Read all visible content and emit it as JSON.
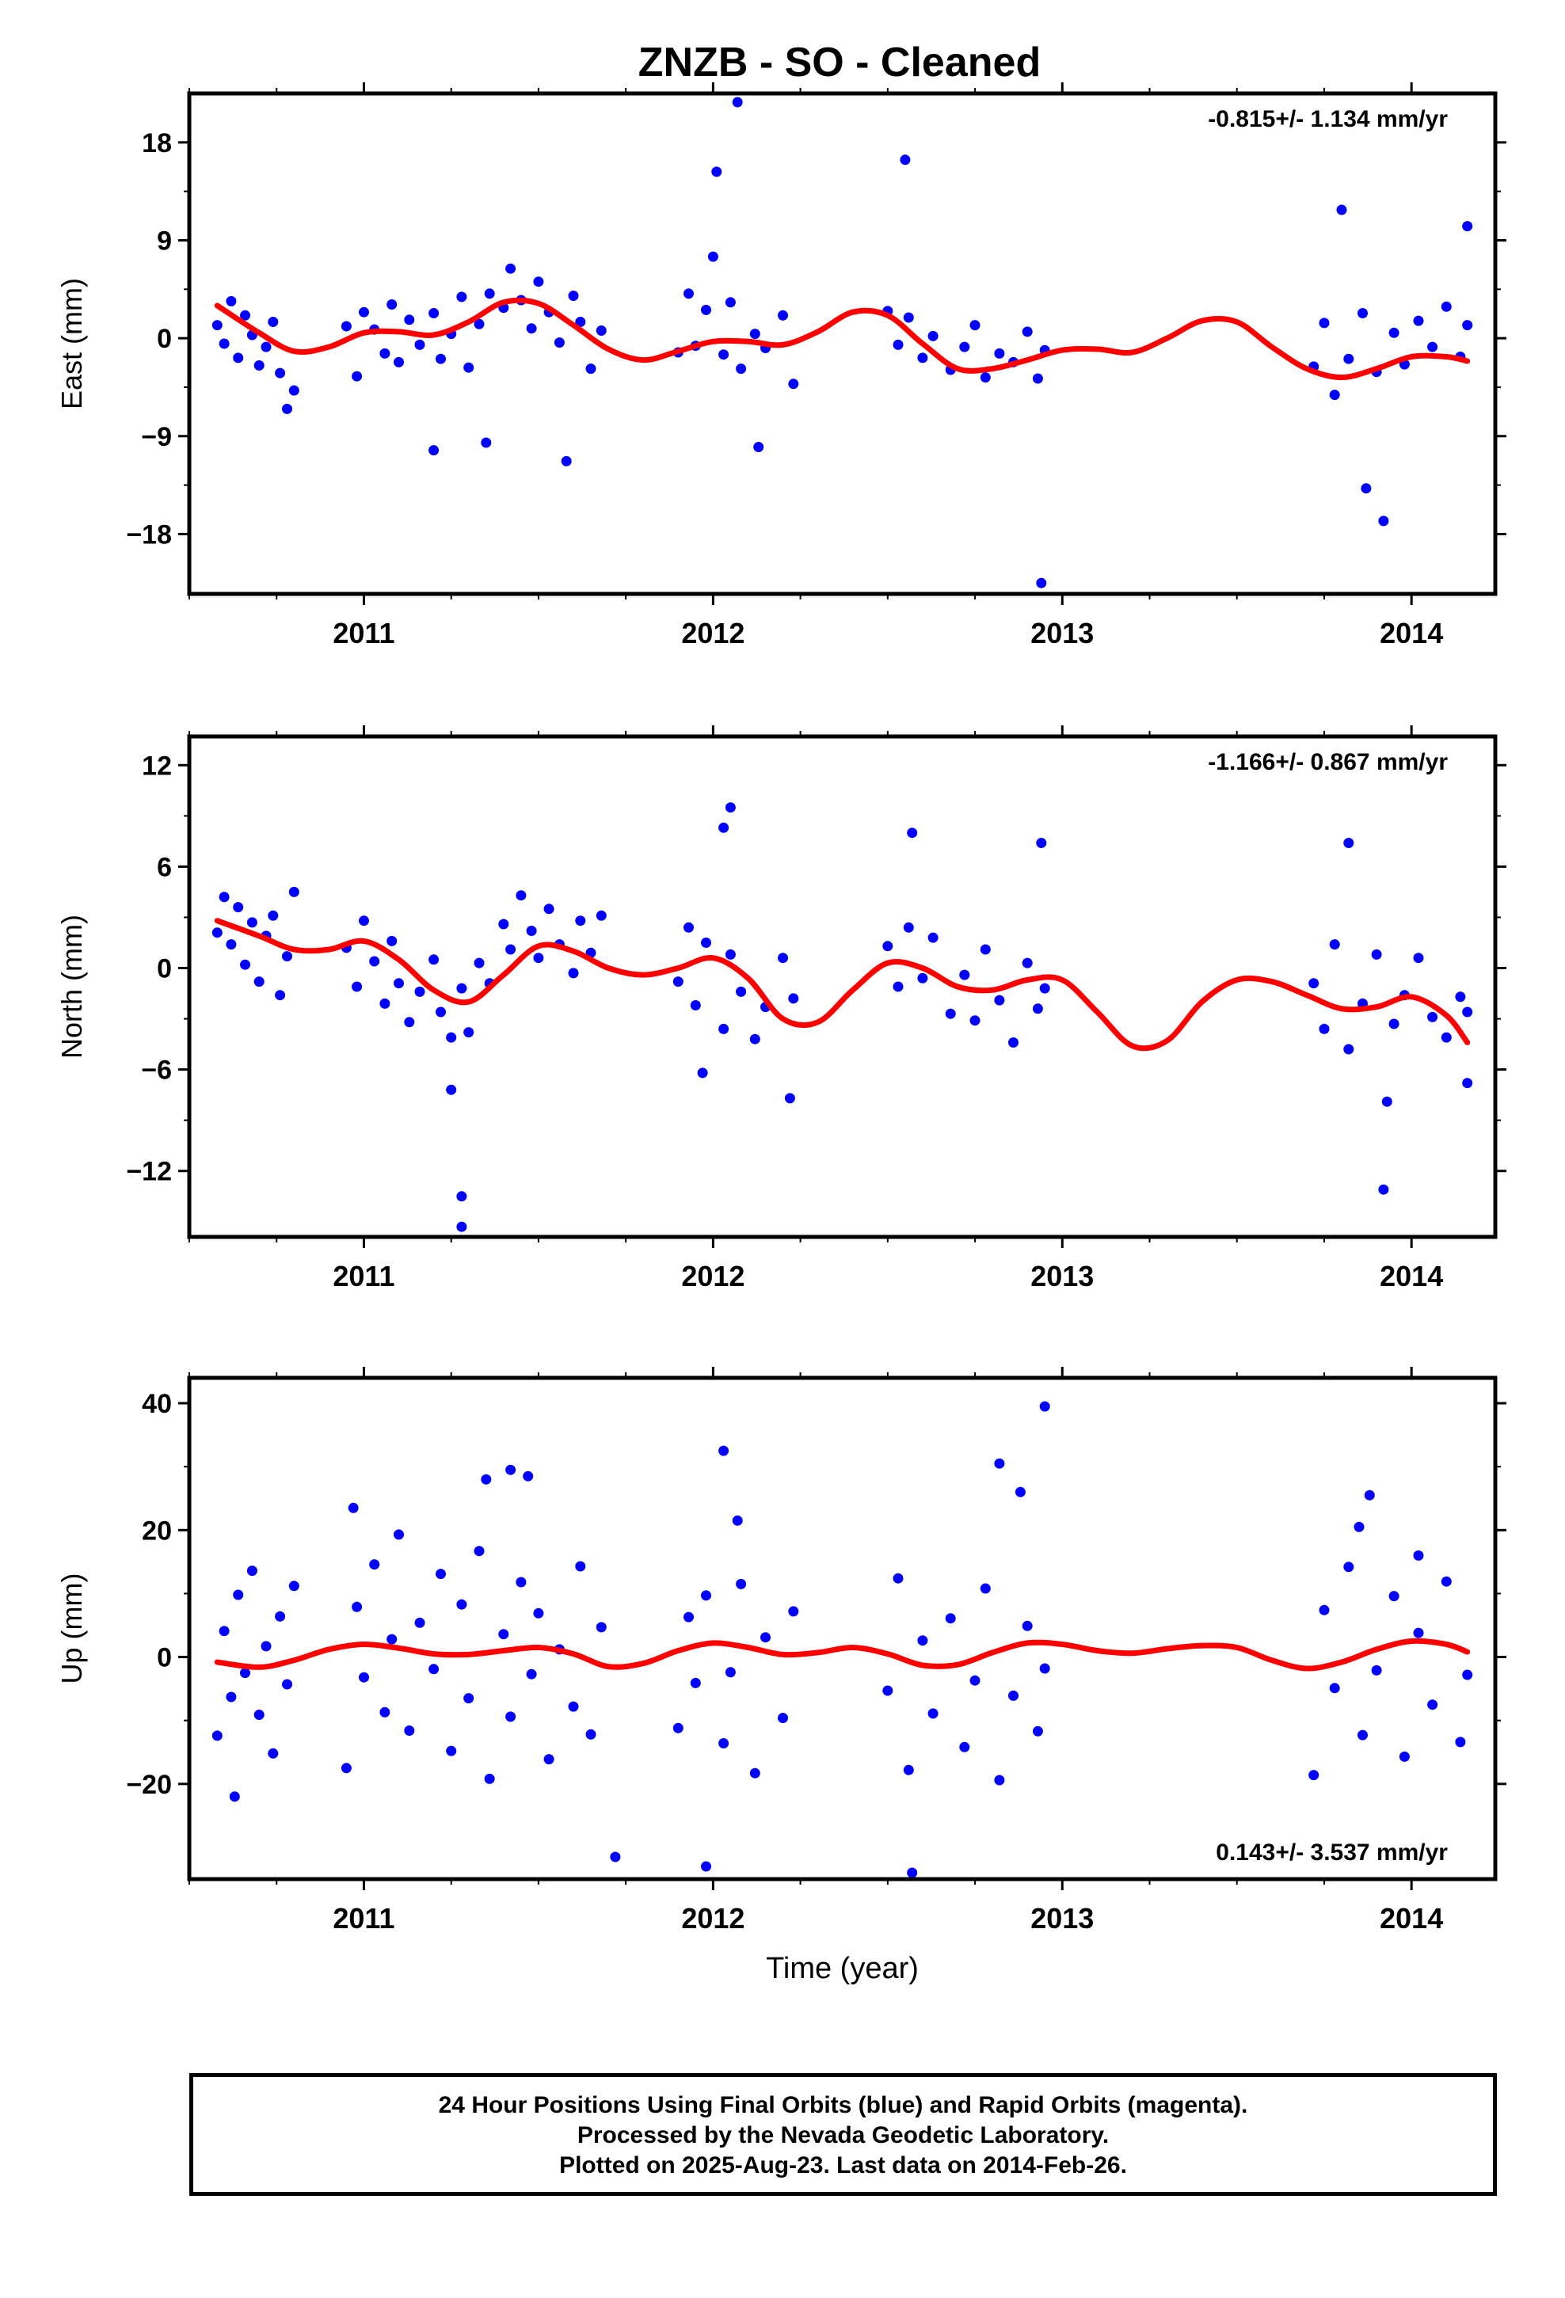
{
  "title": "ZNZB  - SO - Cleaned",
  "colors": {
    "points": "#0000ff",
    "fit": "#ff0000",
    "frame": "#000000"
  },
  "footer": {
    "line1": "24 Hour Positions Using Final Orbits (blue) and Rapid Orbits (magenta).",
    "line2": "Processed by the Nevada Geodetic Laboratory.",
    "line3": "Plotted on 2025-Aug-23. Last data on 2014-Feb-26."
  },
  "chart_data": [
    {
      "type": "scatter",
      "ylabel": "East (mm)",
      "xlabel": "",
      "rate_label": "-0.815+/- 1.134 mm/yr",
      "rate_position": "top-right",
      "xlim": [
        2010.5,
        2014.24
      ],
      "ylim": [
        -23.5,
        22.5
      ],
      "xticks": [
        2011,
        2012,
        2013,
        2014
      ],
      "yticks": [
        18,
        9,
        0,
        -9,
        -18
      ],
      "ytick_labels": [
        "18",
        "9",
        "0",
        "−9",
        "−18"
      ],
      "point_color": "#0000ff",
      "fit_color": "#ff0000",
      "series": [
        {
          "x": [
            2010.58,
            2010.6,
            2010.62,
            2010.64,
            2010.66,
            2010.68,
            2010.7,
            2010.72,
            2010.74,
            2010.76,
            2010.78,
            2010.8,
            2010.95,
            2010.98,
            2011.0,
            2011.03,
            2011.06,
            2011.08,
            2011.1,
            2011.13,
            2011.16,
            2011.2,
            2011.22,
            2011.25,
            2011.28,
            2011.3,
            2011.33,
            2011.36,
            2011.4,
            2011.42,
            2011.45,
            2011.48,
            2011.5,
            2011.53,
            2011.56,
            2011.6,
            2011.62,
            2011.65,
            2011.68,
            2011.9,
            2011.93,
            2011.95,
            2011.98,
            2012.03,
            2012.05,
            2012.08,
            2012.12,
            2012.15,
            2012.2,
            2012.23,
            2012.5,
            2012.53,
            2012.56,
            2012.6,
            2012.63,
            2012.68,
            2012.72,
            2012.75,
            2012.78,
            2012.82,
            2012.86,
            2012.9,
            2012.93,
            2012.95,
            2013.72,
            2013.75,
            2013.78,
            2013.82,
            2013.86,
            2013.9,
            2013.95,
            2013.98,
            2014.02,
            2014.06,
            2014.1,
            2014.14,
            2014.16,
            2011.2,
            2011.35,
            2011.58,
            2012.01,
            2012.13,
            2012.55,
            2012.94,
            2013.8,
            2013.87,
            2013.92,
            2014.16,
            2012.07,
            2012.0
          ],
          "y": [
            1.2,
            -0.5,
            3.4,
            -1.8,
            2.1,
            0.3,
            -2.5,
            -0.8,
            1.5,
            -3.2,
            -6.5,
            -4.8,
            1.1,
            -3.5,
            2.4,
            0.8,
            -1.4,
            3.1,
            -2.2,
            1.7,
            -0.6,
            2.3,
            -1.9,
            0.4,
            3.8,
            -2.7,
            1.3,
            4.1,
            2.8,
            6.4,
            3.5,
            0.9,
            5.2,
            2.4,
            -0.4,
            3.9,
            1.5,
            -2.8,
            0.7,
            -1.3,
            4.1,
            -0.7,
            2.6,
            -1.5,
            3.3,
            -2.8,
            0.4,
            -0.9,
            2.1,
            -4.2,
            2.5,
            -0.6,
            1.9,
            -1.8,
            0.2,
            -2.9,
            -0.8,
            1.2,
            -3.6,
            -1.4,
            -2.2,
            0.6,
            -3.7,
            -1.1,
            -2.6,
            1.4,
            -5.2,
            -1.9,
            2.3,
            -3.1,
            0.5,
            -2.4,
            1.6,
            -0.8,
            2.9,
            -1.7,
            1.2,
            -10.3,
            -9.6,
            -11.3,
            15.3,
            -10.0,
            16.4,
            -22.5,
            11.8,
            -13.8,
            -16.8,
            10.3,
            21.7,
            7.5
          ]
        }
      ],
      "fit": {
        "x": [
          2010.58,
          2010.7,
          2010.8,
          2010.9,
          2011.0,
          2011.1,
          2011.2,
          2011.3,
          2011.4,
          2011.5,
          2011.6,
          2011.7,
          2011.8,
          2011.9,
          2012.0,
          2012.1,
          2012.2,
          2012.3,
          2012.4,
          2012.5,
          2012.6,
          2012.7,
          2012.8,
          2012.9,
          2013.0,
          2013.1,
          2013.2,
          2013.3,
          2013.4,
          2013.5,
          2013.6,
          2013.7,
          2013.8,
          2013.9,
          2014.0,
          2014.1,
          2014.16
        ],
        "y": [
          3.0,
          0.5,
          -1.2,
          -0.8,
          0.5,
          0.6,
          0.3,
          1.5,
          3.3,
          3.2,
          1.2,
          -1.0,
          -2.0,
          -1.2,
          -0.3,
          -0.3,
          -0.6,
          0.6,
          2.4,
          2.1,
          -0.5,
          -2.8,
          -2.8,
          -2.0,
          -1.1,
          -1.0,
          -1.3,
          0.0,
          1.6,
          1.5,
          -0.8,
          -2.8,
          -3.6,
          -2.8,
          -1.7,
          -1.7,
          -2.1
        ]
      }
    },
    {
      "type": "scatter",
      "ylabel": "North (mm)",
      "xlabel": "",
      "rate_label": "-1.166+/- 0.867 mm/yr",
      "rate_position": "top-right",
      "xlim": [
        2010.5,
        2014.24
      ],
      "ylim": [
        -15.9,
        13.7
      ],
      "xticks": [
        2011,
        2012,
        2013,
        2014
      ],
      "yticks": [
        12,
        6,
        0,
        -6,
        -12
      ],
      "ytick_labels": [
        "12",
        "6",
        "0",
        "−6",
        "−12"
      ],
      "point_color": "#0000ff",
      "fit_color": "#ff0000",
      "series": [
        {
          "x": [
            2010.58,
            2010.6,
            2010.62,
            2010.64,
            2010.66,
            2010.68,
            2010.7,
            2010.72,
            2010.74,
            2010.76,
            2010.78,
            2010.8,
            2010.95,
            2010.98,
            2011.0,
            2011.03,
            2011.06,
            2011.08,
            2011.1,
            2011.13,
            2011.16,
            2011.2,
            2011.22,
            2011.25,
            2011.28,
            2011.3,
            2011.33,
            2011.36,
            2011.4,
            2011.42,
            2011.45,
            2011.48,
            2011.5,
            2011.53,
            2011.56,
            2011.6,
            2011.62,
            2011.65,
            2011.68,
            2011.9,
            2011.93,
            2011.95,
            2011.98,
            2012.03,
            2012.05,
            2012.08,
            2012.12,
            2012.15,
            2012.2,
            2012.23,
            2012.5,
            2012.53,
            2012.56,
            2012.6,
            2012.63,
            2012.68,
            2012.72,
            2012.75,
            2012.78,
            2012.82,
            2012.86,
            2012.9,
            2012.93,
            2012.95,
            2013.72,
            2013.75,
            2013.78,
            2013.82,
            2013.86,
            2013.9,
            2013.95,
            2013.98,
            2014.02,
            2014.06,
            2014.1,
            2014.14,
            2014.16,
            2011.28,
            2011.28,
            2011.97,
            2012.05,
            2012.03,
            2012.22,
            2012.57,
            2012.94,
            2013.82,
            2013.93,
            2013.92,
            2014.16,
            2011.25
          ],
          "y": [
            2.1,
            4.2,
            1.4,
            3.6,
            0.2,
            2.7,
            -0.8,
            1.9,
            3.1,
            -1.6,
            0.7,
            4.5,
            1.2,
            -1.1,
            2.8,
            0.4,
            -2.1,
            1.6,
            -0.9,
            -3.2,
            -1.4,
            0.5,
            -2.6,
            -4.1,
            -1.2,
            -3.8,
            0.3,
            -0.9,
            2.6,
            1.1,
            4.3,
            2.2,
            0.6,
            3.5,
            1.4,
            -0.3,
            2.8,
            0.9,
            3.1,
            -0.8,
            2.4,
            -2.2,
            1.5,
            -3.6,
            0.8,
            -1.4,
            -4.2,
            -2.3,
            0.6,
            -1.8,
            1.3,
            -1.1,
            2.4,
            -0.6,
            1.8,
            -2.7,
            -0.4,
            -3.1,
            1.1,
            -1.9,
            -4.4,
            0.3,
            -2.4,
            -1.2,
            -0.9,
            -3.6,
            1.4,
            -4.8,
            -2.1,
            0.8,
            -3.3,
            -1.6,
            0.6,
            -2.9,
            -4.1,
            -1.7,
            -2.6,
            -13.5,
            -15.3,
            -6.2,
            9.5,
            8.3,
            -7.7,
            8.0,
            7.4,
            7.4,
            -7.9,
            -13.1,
            -6.8,
            -7.2
          ]
        }
      ],
      "fit": {
        "x": [
          2010.58,
          2010.7,
          2010.8,
          2010.9,
          2011.0,
          2011.1,
          2011.2,
          2011.3,
          2011.4,
          2011.5,
          2011.6,
          2011.7,
          2011.8,
          2011.9,
          2012.0,
          2012.1,
          2012.2,
          2012.3,
          2012.4,
          2012.5,
          2012.6,
          2012.7,
          2012.8,
          2012.9,
          2013.0,
          2013.1,
          2013.2,
          2013.3,
          2013.4,
          2013.5,
          2013.6,
          2013.7,
          2013.8,
          2013.9,
          2014.0,
          2014.1,
          2014.16
        ],
        "y": [
          2.8,
          1.9,
          1.1,
          1.1,
          1.6,
          0.5,
          -1.3,
          -2.0,
          -0.4,
          1.3,
          1.0,
          0.0,
          -0.4,
          0.0,
          0.6,
          -0.6,
          -3.0,
          -3.2,
          -1.3,
          0.3,
          0.0,
          -1.1,
          -1.3,
          -0.7,
          -0.7,
          -2.6,
          -4.6,
          -4.3,
          -2.0,
          -0.7,
          -0.8,
          -1.6,
          -2.4,
          -2.3,
          -1.7,
          -2.8,
          -4.4
        ]
      }
    },
    {
      "type": "scatter",
      "ylabel": "Up (mm)",
      "xlabel": "Time (year)",
      "rate_label": "0.143+/- 3.537 mm/yr",
      "rate_position": "bottom-right",
      "xlim": [
        2010.5,
        2014.24
      ],
      "ylim": [
        -35,
        44
      ],
      "xticks": [
        2011,
        2012,
        2013,
        2014
      ],
      "yticks": [
        40,
        20,
        0,
        -20
      ],
      "ytick_labels": [
        "40",
        "20",
        "0",
        "−20"
      ],
      "point_color": "#0000ff",
      "fit_color": "#ff0000",
      "series": [
        {
          "x": [
            2010.58,
            2010.6,
            2010.62,
            2010.64,
            2010.66,
            2010.68,
            2010.7,
            2010.72,
            2010.74,
            2010.76,
            2010.78,
            2010.8,
            2010.95,
            2010.98,
            2011.0,
            2011.03,
            2011.06,
            2011.08,
            2011.1,
            2011.13,
            2011.16,
            2011.2,
            2011.22,
            2011.25,
            2011.28,
            2011.3,
            2011.33,
            2011.36,
            2011.4,
            2011.42,
            2011.45,
            2011.48,
            2011.5,
            2011.53,
            2011.56,
            2011.6,
            2011.62,
            2011.65,
            2011.68,
            2011.9,
            2011.93,
            2011.95,
            2011.98,
            2012.03,
            2012.05,
            2012.08,
            2012.12,
            2012.15,
            2012.2,
            2012.23,
            2012.5,
            2012.53,
            2012.56,
            2012.6,
            2012.63,
            2012.68,
            2012.72,
            2012.75,
            2012.78,
            2012.82,
            2012.86,
            2012.9,
            2012.93,
            2012.95,
            2013.72,
            2013.75,
            2013.78,
            2013.82,
            2013.86,
            2013.9,
            2013.95,
            2013.98,
            2014.02,
            2014.06,
            2014.1,
            2014.14,
            2014.16,
            2011.98,
            2012.03,
            2012.57,
            2012.95,
            2012.88,
            2011.42,
            2011.72,
            2011.47,
            2010.63,
            2010.97,
            2011.35,
            2012.07,
            2013.85,
            2013.88,
            2014.02,
            2012.82
          ],
          "y": [
            -12.4,
            4.1,
            -6.3,
            9.8,
            -2.5,
            13.6,
            -9.1,
            1.7,
            -15.2,
            6.4,
            -4.3,
            11.2,
            -17.5,
            7.9,
            -3.2,
            14.6,
            -8.7,
            2.8,
            19.3,
            -11.6,
            5.4,
            -1.9,
            13.1,
            -14.8,
            8.3,
            -6.5,
            16.7,
            -19.2,
            3.6,
            -9.4,
            11.8,
            -2.7,
            6.9,
            -16.1,
            1.2,
            -7.8,
            14.3,
            -12.2,
            4.7,
            -11.2,
            6.3,
            -4.1,
            9.7,
            -13.6,
            -2.4,
            11.5,
            -18.3,
            3.1,
            -9.6,
            7.2,
            -5.3,
            12.4,
            -17.8,
            2.6,
            -8.9,
            6.1,
            -14.2,
            -3.7,
            10.8,
            -19.4,
            -6.1,
            4.9,
            -11.7,
            -1.8,
            -18.6,
            7.4,
            -4.9,
            14.2,
            -12.3,
            -2.1,
            9.6,
            -15.7,
            3.8,
            -7.5,
            11.9,
            -13.4,
            -2.8,
            -33.0,
            32.5,
            -34.0,
            39.5,
            26.0,
            29.5,
            -31.5,
            28.5,
            -22.0,
            23.5,
            28.0,
            21.5,
            20.5,
            25.5,
            16.0,
            30.5
          ]
        }
      ],
      "fit": {
        "x": [
          2010.58,
          2010.7,
          2010.8,
          2010.9,
          2011.0,
          2011.1,
          2011.2,
          2011.3,
          2011.4,
          2011.5,
          2011.6,
          2011.7,
          2011.8,
          2011.9,
          2012.0,
          2012.1,
          2012.2,
          2012.3,
          2012.4,
          2012.5,
          2012.6,
          2012.7,
          2012.8,
          2012.9,
          2013.0,
          2013.1,
          2013.2,
          2013.3,
          2013.4,
          2013.5,
          2013.6,
          2013.7,
          2013.8,
          2013.9,
          2014.0,
          2014.1,
          2014.16
        ],
        "y": [
          -0.8,
          -1.6,
          -0.5,
          1.2,
          2.0,
          1.4,
          0.5,
          0.4,
          1.0,
          1.5,
          0.5,
          -1.5,
          -1.0,
          1.0,
          2.2,
          1.5,
          0.4,
          0.7,
          1.5,
          0.5,
          -1.3,
          -1.2,
          0.7,
          2.2,
          2.0,
          1.0,
          0.6,
          1.3,
          1.8,
          1.5,
          -0.5,
          -1.8,
          -0.8,
          1.2,
          2.5,
          2.0,
          0.8
        ]
      }
    }
  ]
}
